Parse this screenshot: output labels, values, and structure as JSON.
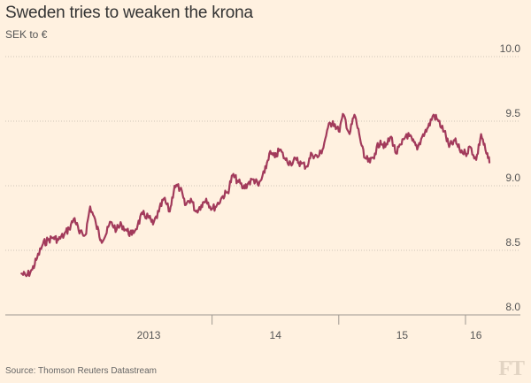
{
  "chart_data": {
    "type": "line",
    "title": "Sweden tries to weaken the krona",
    "subtitle": "SEK to €",
    "source": "Source: Thomson Reuters Datastream",
    "logo": "FT",
    "ylim": [
      8.0,
      10.0
    ],
    "yticks": [
      {
        "value": 10.0,
        "label": "10.0"
      },
      {
        "value": 9.5,
        "label": "9.5"
      },
      {
        "value": 9.0,
        "label": "9.0"
      },
      {
        "value": 8.5,
        "label": "8.5"
      },
      {
        "value": 8.0,
        "label": "8.0"
      }
    ],
    "xlim": [
      "2012-06-15",
      "2016-03-15"
    ],
    "xticks": [
      {
        "value": "2013-01-01",
        "label": "2013"
      },
      {
        "value": "2014-01-01",
        "label": "14"
      },
      {
        "value": "2015-01-01",
        "label": "15"
      },
      {
        "value": "2016-01-01",
        "label": "16"
      }
    ],
    "grid": true,
    "line_color": "#a23a5b",
    "series": [
      {
        "values": [
          [
            "2012-07-01",
            8.32
          ],
          [
            "2012-07-15",
            8.3
          ],
          [
            "2012-08-01",
            8.35
          ],
          [
            "2012-08-15",
            8.44
          ],
          [
            "2012-09-01",
            8.55
          ],
          [
            "2012-09-15",
            8.58
          ],
          [
            "2012-10-01",
            8.6
          ],
          [
            "2012-10-15",
            8.58
          ],
          [
            "2012-11-01",
            8.62
          ],
          [
            "2012-11-15",
            8.67
          ],
          [
            "2012-12-01",
            8.75
          ],
          [
            "2012-12-15",
            8.63
          ],
          [
            "2013-01-01",
            8.62
          ],
          [
            "2013-01-15",
            8.84
          ],
          [
            "2013-02-01",
            8.7
          ],
          [
            "2013-02-15",
            8.58
          ],
          [
            "2013-03-01",
            8.62
          ],
          [
            "2013-03-15",
            8.72
          ],
          [
            "2013-04-01",
            8.66
          ],
          [
            "2013-04-15",
            8.7
          ],
          [
            "2013-05-01",
            8.65
          ],
          [
            "2013-05-15",
            8.62
          ],
          [
            "2013-06-01",
            8.7
          ],
          [
            "2013-06-15",
            8.78
          ],
          [
            "2013-07-01",
            8.76
          ],
          [
            "2013-07-15",
            8.7
          ],
          [
            "2013-08-01",
            8.8
          ],
          [
            "2013-08-15",
            8.9
          ],
          [
            "2013-09-01",
            8.8
          ],
          [
            "2013-09-15",
            9.0
          ],
          [
            "2013-10-01",
            8.98
          ],
          [
            "2013-10-15",
            8.85
          ],
          [
            "2013-11-01",
            8.9
          ],
          [
            "2013-11-15",
            8.8
          ],
          [
            "2013-12-01",
            8.85
          ],
          [
            "2013-12-15",
            8.9
          ],
          [
            "2014-01-01",
            8.82
          ],
          [
            "2014-01-15",
            8.85
          ],
          [
            "2014-02-01",
            8.92
          ],
          [
            "2014-02-15",
            8.95
          ],
          [
            "2014-03-01",
            9.08
          ],
          [
            "2014-03-15",
            9.04
          ],
          [
            "2014-04-01",
            8.98
          ],
          [
            "2014-04-15",
            9.02
          ],
          [
            "2014-05-01",
            9.05
          ],
          [
            "2014-05-15",
            9.0
          ],
          [
            "2014-06-01",
            9.1
          ],
          [
            "2014-06-15",
            9.25
          ],
          [
            "2014-07-01",
            9.22
          ],
          [
            "2014-07-15",
            9.28
          ],
          [
            "2014-08-01",
            9.2
          ],
          [
            "2014-08-15",
            9.18
          ],
          [
            "2014-09-01",
            9.2
          ],
          [
            "2014-09-15",
            9.17
          ],
          [
            "2014-10-01",
            9.15
          ],
          [
            "2014-10-15",
            9.25
          ],
          [
            "2014-11-01",
            9.22
          ],
          [
            "2014-11-15",
            9.28
          ],
          [
            "2014-12-01",
            9.45
          ],
          [
            "2014-12-15",
            9.5
          ],
          [
            "2015-01-01",
            9.42
          ],
          [
            "2015-01-15",
            9.55
          ],
          [
            "2015-02-01",
            9.4
          ],
          [
            "2015-02-15",
            9.55
          ],
          [
            "2015-03-01",
            9.4
          ],
          [
            "2015-03-15",
            9.22
          ],
          [
            "2015-04-01",
            9.18
          ],
          [
            "2015-04-15",
            9.25
          ],
          [
            "2015-05-01",
            9.35
          ],
          [
            "2015-05-15",
            9.3
          ],
          [
            "2015-06-01",
            9.38
          ],
          [
            "2015-06-15",
            9.25
          ],
          [
            "2015-07-01",
            9.32
          ],
          [
            "2015-07-15",
            9.4
          ],
          [
            "2015-08-01",
            9.35
          ],
          [
            "2015-08-15",
            9.28
          ],
          [
            "2015-09-01",
            9.4
          ],
          [
            "2015-09-15",
            9.45
          ],
          [
            "2015-10-01",
            9.55
          ],
          [
            "2015-10-15",
            9.5
          ],
          [
            "2015-11-01",
            9.42
          ],
          [
            "2015-11-15",
            9.3
          ],
          [
            "2015-12-01",
            9.35
          ],
          [
            "2015-12-15",
            9.28
          ],
          [
            "2016-01-01",
            9.25
          ],
          [
            "2016-01-15",
            9.3
          ],
          [
            "2016-02-01",
            9.2
          ],
          [
            "2016-02-15",
            9.4
          ],
          [
            "2016-03-01",
            9.25
          ],
          [
            "2016-03-10",
            9.18
          ]
        ]
      }
    ]
  }
}
